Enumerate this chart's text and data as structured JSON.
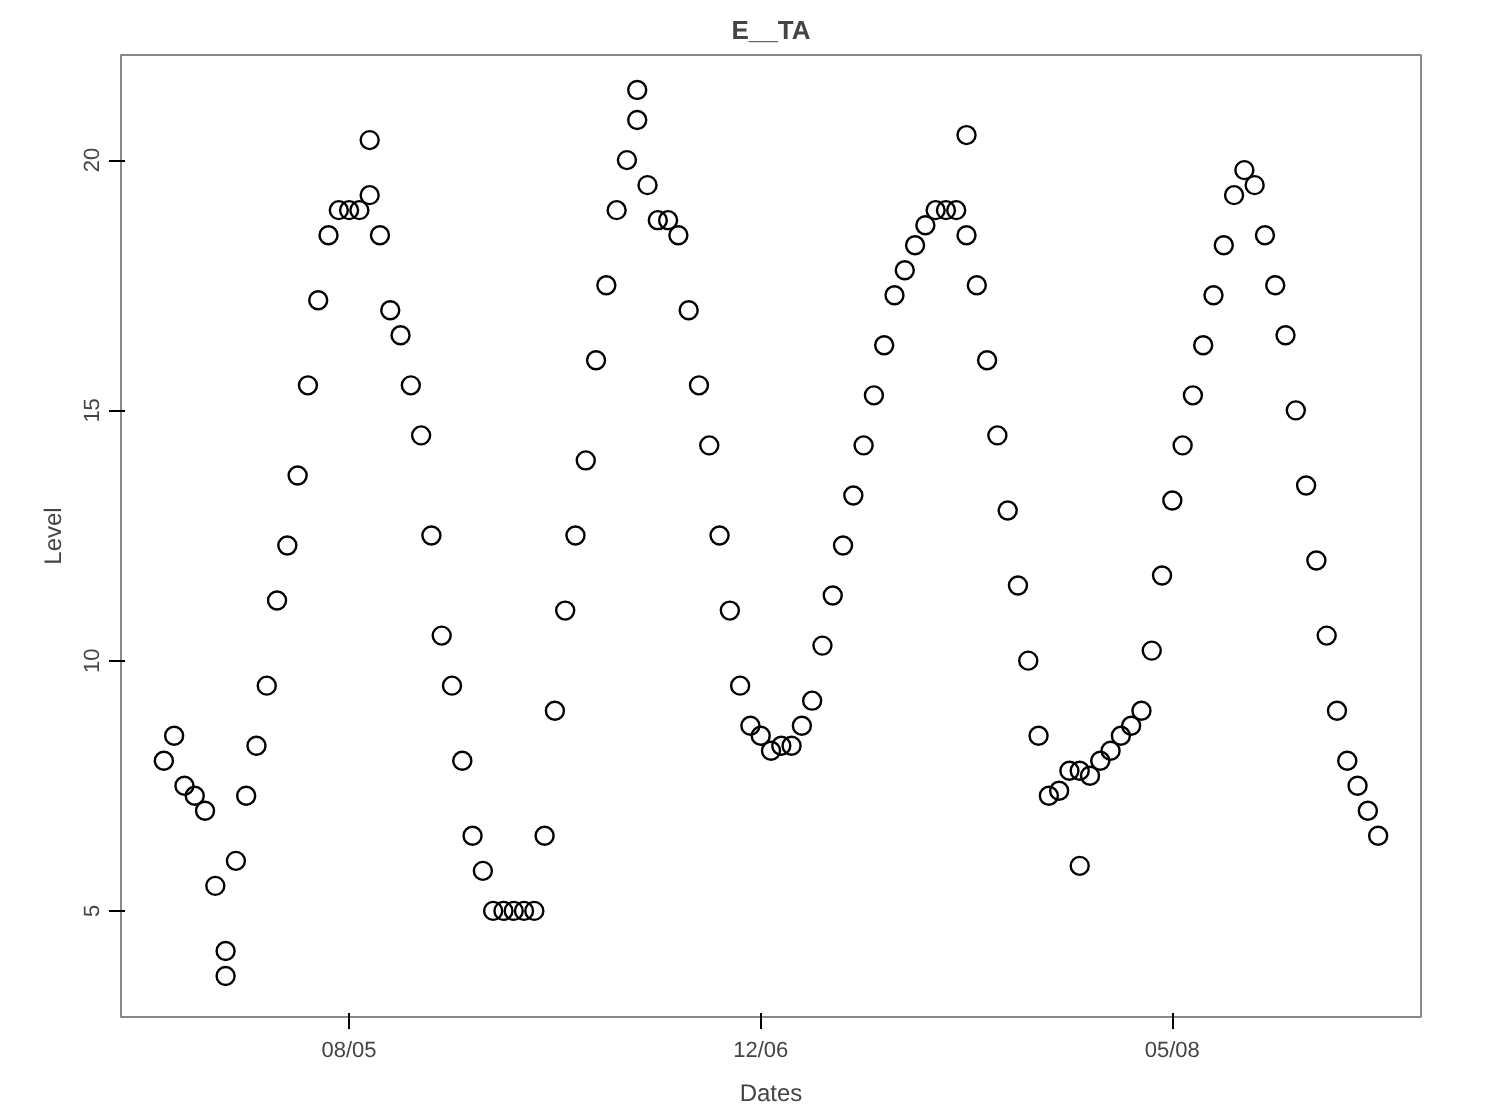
{
  "chart_data": {
    "type": "scatter",
    "title": "E__TA",
    "xlabel": "Dates",
    "ylabel": "Level",
    "ylim": [
      2.88,
      22.1
    ],
    "yticks": [
      5,
      10,
      15,
      20
    ],
    "grid": false,
    "marker": "circle",
    "categories": [
      null,
      null,
      null,
      null,
      null,
      null,
      null,
      null,
      null,
      null,
      null,
      null,
      null,
      null,
      null,
      null,
      null,
      null,
      "08/05",
      null,
      null,
      null,
      null,
      null,
      null,
      null,
      null,
      null,
      null,
      null,
      null,
      null,
      null,
      null,
      null,
      null,
      null,
      null,
      null,
      null,
      null,
      null,
      null,
      null,
      null,
      null,
      null,
      null,
      null,
      null,
      null,
      null,
      null,
      null,
      null,
      null,
      null,
      null,
      "12/06",
      null,
      null,
      null,
      null,
      null,
      null,
      null,
      null,
      null,
      null,
      null,
      null,
      null,
      null,
      null,
      null,
      null,
      null,
      null,
      null,
      null,
      null,
      null,
      null,
      null,
      null,
      null,
      null,
      null,
      null,
      null,
      null,
      null,
      null,
      null,
      null,
      null,
      null,
      null,
      "05/08",
      null,
      null,
      null,
      null,
      null,
      null,
      null,
      null,
      null,
      null,
      null,
      null,
      null,
      null,
      null,
      null,
      null,
      null,
      null,
      null
    ],
    "series": [
      {
        "color": "#000000",
        "values": [
          8.0,
          8.5,
          7.5,
          7.3,
          7.0,
          5.5,
          4.2,
          6.0,
          7.3,
          8.3,
          9.5,
          11.2,
          12.3,
          13.7,
          15.5,
          17.2,
          18.5,
          19.0,
          19.0,
          19.0,
          19.3,
          18.5,
          17.0,
          16.5,
          15.5,
          14.5,
          12.5,
          10.5,
          9.5,
          8.0,
          6.5,
          5.8,
          5.0,
          5.0,
          5.0,
          5.0,
          5.0,
          6.5,
          9.0,
          11.0,
          12.5,
          14.0,
          16.0,
          17.5,
          19.0,
          20.0,
          20.8,
          19.5,
          18.8,
          18.8,
          18.5,
          17.0,
          15.5,
          14.3,
          12.5,
          11.0,
          9.5,
          8.7,
          8.5,
          8.2,
          8.3,
          8.3,
          8.7,
          9.2,
          10.3,
          11.3,
          12.3,
          13.3,
          14.3,
          15.3,
          16.3,
          17.3,
          17.8,
          18.3,
          18.7,
          19.0,
          19.0,
          19.0,
          18.5,
          17.5,
          16.0,
          14.5,
          13.0,
          11.5,
          10.0,
          8.5,
          7.3,
          7.4,
          7.8,
          7.8,
          7.7,
          8.0,
          8.2,
          8.5,
          8.7,
          9.0,
          10.2,
          11.7,
          13.2,
          14.3,
          15.3,
          16.3,
          17.3,
          18.3,
          19.3,
          19.8,
          19.5,
          18.5,
          17.5,
          16.5,
          15.0,
          13.5,
          12.0,
          10.5,
          9.0,
          8.0,
          7.5,
          7.0,
          6.5
        ]
      },
      {
        "color": "#000000",
        "values": [
          null,
          null,
          null,
          null,
          null,
          null,
          3.7,
          null,
          null,
          null,
          null,
          null,
          null,
          null,
          null,
          null,
          null,
          null,
          null,
          null,
          20.4,
          null,
          null,
          null,
          null,
          null,
          null,
          null,
          null,
          null,
          null,
          null,
          null,
          null,
          null,
          null,
          null,
          null,
          null,
          null,
          null,
          null,
          null,
          null,
          null,
          null,
          21.4,
          null,
          null,
          null,
          null,
          null,
          null,
          null,
          null,
          null,
          null,
          null,
          null,
          null,
          null,
          null,
          null,
          null,
          null,
          null,
          null,
          null,
          null,
          null,
          null,
          null,
          null,
          null,
          null,
          null,
          null,
          null,
          20.5,
          null,
          null,
          null,
          null,
          null,
          null,
          null,
          null,
          null,
          null,
          5.9,
          null,
          null,
          null,
          null,
          null,
          null,
          null,
          null,
          null,
          null,
          null,
          null,
          null,
          null,
          null,
          null,
          null,
          null,
          null,
          null,
          null,
          null,
          null,
          null,
          null,
          null,
          null,
          null,
          null
        ]
      }
    ]
  }
}
